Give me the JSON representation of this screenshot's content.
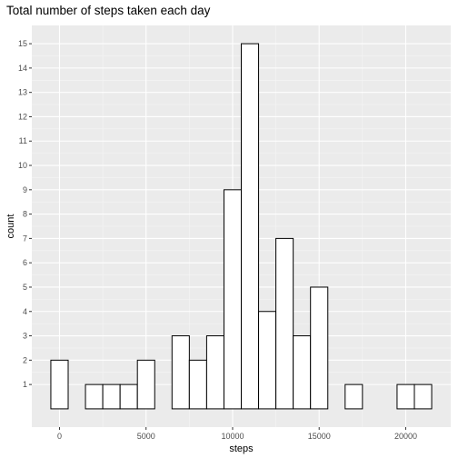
{
  "chart_data": {
    "type": "bar",
    "title": "Total number of steps taken each day",
    "xlabel": "steps",
    "ylabel": "count",
    "binwidth": 1000,
    "bins": [
      {
        "center": 0,
        "count": 2
      },
      {
        "center": 1000,
        "count": 0
      },
      {
        "center": 2000,
        "count": 1
      },
      {
        "center": 3000,
        "count": 1
      },
      {
        "center": 4000,
        "count": 1
      },
      {
        "center": 5000,
        "count": 2
      },
      {
        "center": 6000,
        "count": 0
      },
      {
        "center": 7000,
        "count": 3
      },
      {
        "center": 8000,
        "count": 2
      },
      {
        "center": 9000,
        "count": 3
      },
      {
        "center": 10000,
        "count": 9
      },
      {
        "center": 11000,
        "count": 15
      },
      {
        "center": 12000,
        "count": 4
      },
      {
        "center": 13000,
        "count": 7
      },
      {
        "center": 14000,
        "count": 3
      },
      {
        "center": 15000,
        "count": 5
      },
      {
        "center": 16000,
        "count": 0
      },
      {
        "center": 17000,
        "count": 1
      },
      {
        "center": 18000,
        "count": 0
      },
      {
        "center": 19000,
        "count": 0
      },
      {
        "center": 20000,
        "count": 1
      },
      {
        "center": 21000,
        "count": 1
      }
    ],
    "xticks": [
      0,
      5000,
      10000,
      15000,
      20000
    ],
    "yticks": [
      1,
      2,
      3,
      4,
      5,
      6,
      7,
      8,
      9,
      10,
      11,
      12,
      13,
      14,
      15
    ],
    "xlim": [
      -1600,
      22600
    ],
    "ylim": [
      -0.75,
      15.75
    ],
    "grid": true,
    "colors": {
      "panel_background": "#ebebeb",
      "grid_major": "#ffffff",
      "grid_minor": "#f5f5f5",
      "bar_fill": "#ffffff",
      "bar_outline": "#000000",
      "tick_text": "#4d4d4d"
    }
  }
}
